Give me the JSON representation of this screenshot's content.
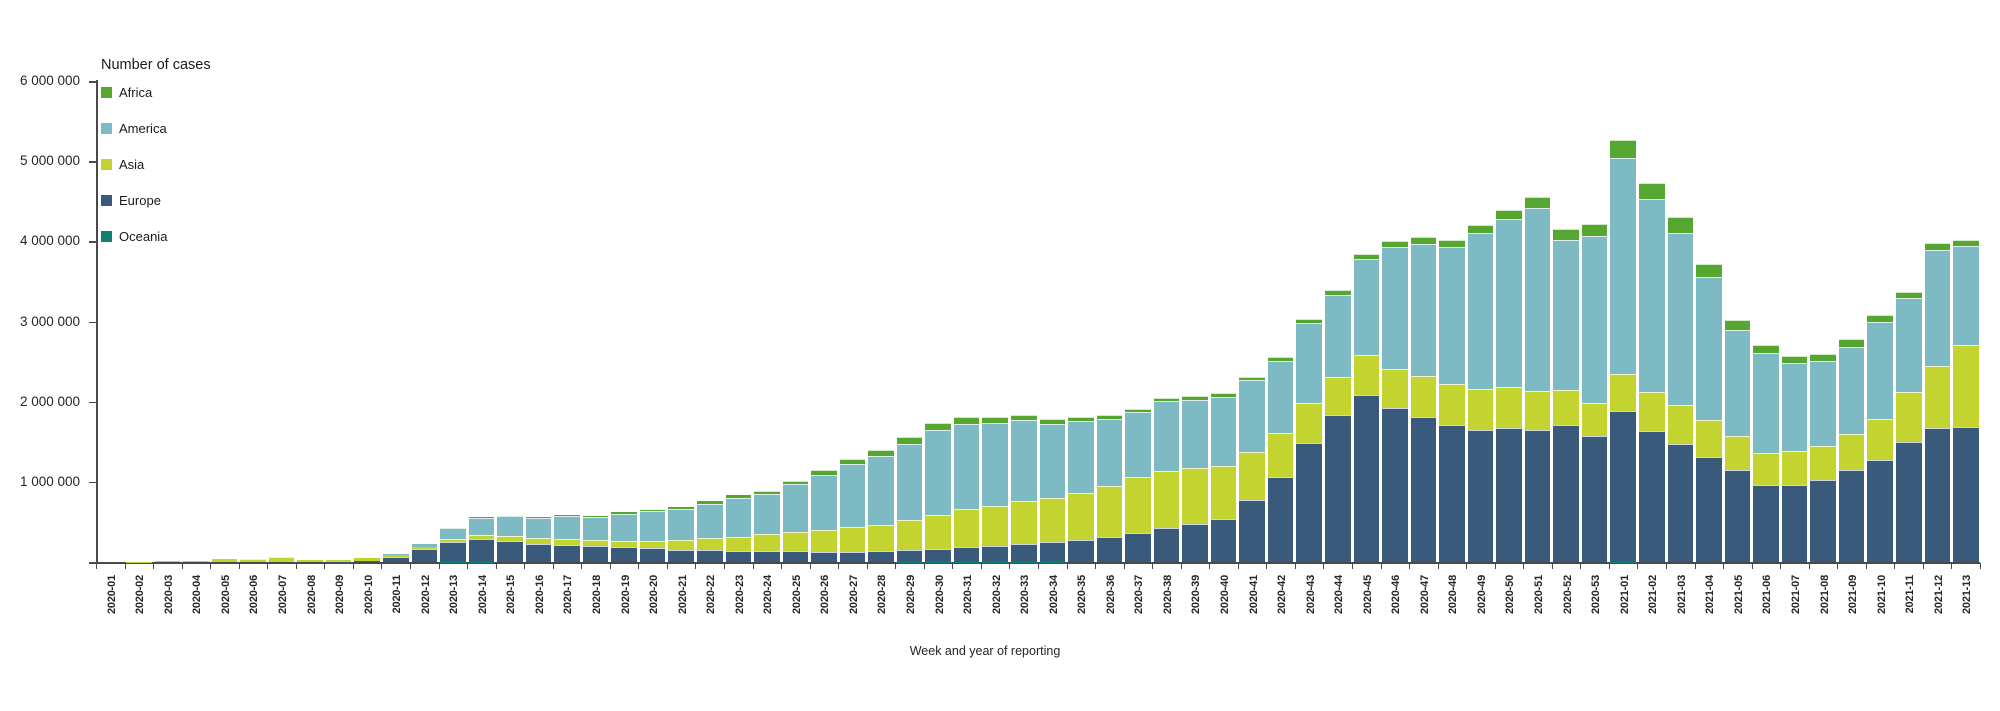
{
  "chart": {
    "legend_title": "Number of cases",
    "xlabel": "Week and year of reporting"
  },
  "chart_data": {
    "type": "bar",
    "stacked": true,
    "title": "Number of cases",
    "xlabel": "Week and year of reporting",
    "ylabel": "",
    "ylim": [
      0,
      6000000
    ],
    "grid": false,
    "legend_position": "top-left-inside",
    "axis_color": "#4a4a4a",
    "ytick_values": [
      1000000,
      2000000,
      3000000,
      4000000,
      5000000,
      6000000
    ],
    "ytick_labels": [
      "1 000 000",
      "2 000 000",
      "3 000 000",
      "4 000 000",
      "5 000 000",
      "6 000 000"
    ],
    "stack_order_bottom_to_top": [
      "Oceania",
      "Europe",
      "Asia",
      "America",
      "Africa"
    ],
    "categories": [
      "2020-01",
      "2020-02",
      "2020-03",
      "2020-04",
      "2020-05",
      "2020-06",
      "2020-07",
      "2020-08",
      "2020-09",
      "2020-10",
      "2020-11",
      "2020-12",
      "2020-13",
      "2020-14",
      "2020-15",
      "2020-16",
      "2020-17",
      "2020-18",
      "2020-19",
      "2020-20",
      "2020-21",
      "2020-22",
      "2020-23",
      "2020-24",
      "2020-25",
      "2020-26",
      "2020-27",
      "2020-28",
      "2020-29",
      "2020-30",
      "2020-31",
      "2020-32",
      "2020-33",
      "2020-34",
      "2020-35",
      "2020-36",
      "2020-37",
      "2020-38",
      "2020-39",
      "2020-40",
      "2020-41",
      "2020-42",
      "2020-43",
      "2020-44",
      "2020-45",
      "2020-46",
      "2020-47",
      "2020-48",
      "2020-49",
      "2020-50",
      "2020-51",
      "2020-52",
      "2020-53",
      "2021-01",
      "2021-02",
      "2021-03",
      "2021-04",
      "2021-05",
      "2021-06",
      "2021-07",
      "2021-08",
      "2021-09",
      "2021-10",
      "2021-11",
      "2021-12",
      "2021-13"
    ],
    "series": [
      {
        "name": "Africa",
        "color": "#56a72f",
        "values": [
          0,
          0,
          0,
          0,
          0,
          0,
          100,
          100,
          100,
          200,
          500,
          2000,
          6000,
          8000,
          10000,
          12000,
          14000,
          15000,
          18000,
          22000,
          28000,
          32000,
          35000,
          38000,
          45000,
          55000,
          65000,
          75000,
          85000,
          90000,
          85000,
          75000,
          70000,
          60000,
          55000,
          50000,
          45000,
          45000,
          45000,
          45000,
          45000,
          45000,
          50000,
          60000,
          70000,
          75000,
          85000,
          95000,
          100000,
          110000,
          130000,
          135000,
          145000,
          215000,
          210000,
          195000,
          155000,
          125000,
          105000,
          85000,
          90000,
          100000,
          95000,
          72000,
          95000,
          78000
        ]
      },
      {
        "name": "America",
        "color": "#7dbac4",
        "values": [
          0,
          0,
          0,
          500,
          500,
          500,
          500,
          1000,
          1000,
          1500,
          6000,
          30000,
          130000,
          210000,
          250000,
          260000,
          285000,
          285000,
          340000,
          370000,
          385000,
          430000,
          480000,
          505000,
          600000,
          685000,
          785000,
          860000,
          955000,
          1065000,
          1060000,
          1030000,
          1010000,
          930000,
          900000,
          830000,
          810000,
          870000,
          850000,
          860000,
          890000,
          900000,
          1000000,
          1020000,
          1190000,
          1520000,
          1650000,
          1700000,
          1950000,
          2100000,
          2290000,
          1870000,
          2090000,
          2695000,
          2405000,
          2156000,
          1783000,
          1327000,
          1244000,
          1098000,
          1061000,
          1078000,
          1202000,
          1165000,
          1439000,
          1231000
        ]
      },
      {
        "name": "Asia",
        "color": "#c3d32f",
        "values": [
          1000,
          3000,
          8000,
          15000,
          32000,
          39000,
          59000,
          24000,
          28000,
          35000,
          28000,
          30000,
          40000,
          55000,
          60000,
          65000,
          70000,
          72000,
          78000,
          90000,
          125000,
          155000,
          180000,
          207000,
          235000,
          275000,
          305000,
          330000,
          365000,
          415000,
          470000,
          500000,
          530000,
          550000,
          580000,
          640000,
          700000,
          710000,
          700000,
          660000,
          600000,
          545000,
          490000,
          485000,
          500000,
          490000,
          510000,
          520000,
          510000,
          505000,
          480000,
          440000,
          415000,
          469000,
          485000,
          477000,
          464000,
          415000,
          402000,
          415000,
          423000,
          456000,
          510000,
          630000,
          775000,
          1028000
        ]
      },
      {
        "name": "Europe",
        "color": "#3a5a7c",
        "values": [
          0,
          0,
          0,
          500,
          500,
          500,
          500,
          500,
          3000,
          11000,
          65000,
          160000,
          250000,
          285000,
          260000,
          230000,
          215000,
          200000,
          187000,
          173000,
          152000,
          145000,
          137000,
          137000,
          137000,
          130000,
          130000,
          137000,
          153000,
          165000,
          185000,
          196000,
          228000,
          245000,
          278000,
          311000,
          360000,
          423000,
          477000,
          539000,
          775000,
          1065000,
          1488000,
          1829000,
          2085000,
          1920000,
          1808000,
          1704000,
          1650000,
          1675000,
          1650000,
          1704000,
          1567000,
          1878000,
          1634000,
          1476000,
          1310000,
          1152000,
          958000,
          966000,
          1020000,
          1144000,
          1277000,
          1497000,
          1675000,
          1683000
        ]
      },
      {
        "name": "Oceania",
        "color": "#0e8174",
        "values": [
          0,
          0,
          0,
          0,
          100,
          100,
          100,
          100,
          200,
          300,
          500,
          1500,
          2500,
          2000,
          1200,
          800,
          600,
          500,
          500,
          500,
          500,
          400,
          400,
          400,
          500,
          500,
          700,
          1500,
          2500,
          3500,
          3500,
          3000,
          2500,
          2000,
          1800,
          1500,
          1200,
          1000,
          900,
          800,
          700,
          700,
          700,
          700,
          700,
          600,
          600,
          500,
          500,
          400,
          400,
          400,
          400,
          2000,
          1500,
          1200,
          1000,
          800,
          700,
          600,
          500,
          500,
          400,
          400,
          400,
          400
        ]
      }
    ]
  }
}
